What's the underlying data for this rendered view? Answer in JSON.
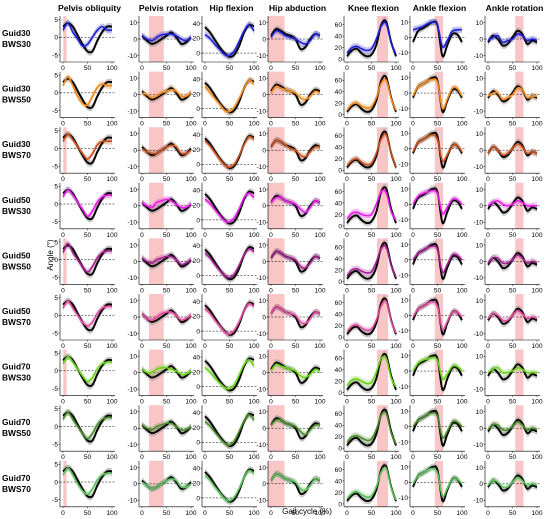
{
  "figure": {
    "ylabel": "Angle (°)",
    "xlabel": "Gait cycle (%)",
    "x_ticks": [
      "0",
      "50",
      "100"
    ]
  },
  "chart_data": {
    "type": "line",
    "title": "",
    "xlabel": "Gait cycle (%)",
    "ylabel": "Angle (°)",
    "x": [
      0,
      10,
      20,
      30,
      40,
      50,
      60,
      70,
      80,
      90,
      100
    ],
    "xlim": [
      0,
      100
    ],
    "column_titles": [
      "Pelvis obliquity",
      "Pelvis rotation",
      "Hip flexion",
      "Hip abduction",
      "Knee flexion",
      "Ankle flexion",
      "Ankle rotation"
    ],
    "row_labels": [
      [
        "Guid30",
        "BWS30"
      ],
      [
        "Guid30",
        "BWS50"
      ],
      [
        "Guid30",
        "BWS70"
      ],
      [
        "Guid50",
        "BWS30"
      ],
      [
        "Guid50",
        "BWS50"
      ],
      [
        "Guid50",
        "BWS70"
      ],
      [
        "Guid70",
        "BWS30"
      ],
      [
        "Guid70",
        "BWS50"
      ],
      [
        "Guid70",
        "BWS70"
      ]
    ],
    "row_colors": [
      "#1f1fd6",
      "#f08a1e",
      "#c8501e",
      "#e61ee6",
      "#a0208c",
      "#e04a9c",
      "#6bd01a",
      "#4a8a2a",
      "#5cc05c"
    ],
    "reference_color": "#000000",
    "panels": [
      {
        "yticks": [
          "5",
          "0",
          "-5"
        ],
        "ylim": [
          -7,
          6
        ],
        "zero_line": true,
        "reference": [
          3,
          4,
          3,
          0.5,
          -2,
          -4,
          -4,
          -1,
          1.5,
          3,
          3
        ]
      },
      {
        "yticks": [
          "10",
          "0",
          "-10"
        ],
        "ylim": [
          -14,
          14
        ],
        "zero_line": true,
        "reference": [
          2,
          -1,
          -3,
          -2,
          0,
          2,
          4,
          1,
          -3,
          -2,
          1
        ]
      },
      {
        "yticks": [
          "40",
          "20",
          "0"
        ],
        "ylim": [
          -12,
          50
        ],
        "zero_line": true,
        "reference": [
          35,
          28,
          18,
          8,
          0,
          -5,
          -2,
          10,
          28,
          38,
          36
        ]
      },
      {
        "yticks": [
          "10",
          "0",
          "-10"
        ],
        "ylim": [
          -14,
          14
        ],
        "zero_line": true,
        "reference": [
          2,
          6,
          5,
          3,
          2,
          0,
          -6,
          -5,
          0,
          3,
          2
        ]
      },
      {
        "yticks": [
          "60",
          "40",
          "20",
          "0"
        ],
        "ylim": [
          -5,
          75
        ],
        "zero_line": false,
        "reference": [
          5,
          15,
          18,
          10,
          5,
          8,
          25,
          60,
          65,
          30,
          5
        ]
      },
      {
        "yticks": [
          "10",
          "0",
          "-10"
        ],
        "ylim": [
          -16,
          14
        ],
        "zero_line": true,
        "reference": [
          -3,
          4,
          6,
          8,
          10,
          8,
          -12,
          -5,
          2,
          2,
          -3
        ]
      },
      {
        "yticks": [
          "10",
          "0",
          "-10"
        ],
        "ylim": [
          -14,
          14
        ],
        "zero_line": true,
        "reference": [
          -2,
          2,
          0,
          -4,
          -3,
          1,
          5,
          3,
          -3,
          -1,
          -2
        ]
      }
    ],
    "series_by_row": [
      [
        [
          2,
          4,
          1.5,
          -0.5,
          -2.5,
          -2,
          0,
          2,
          3,
          2,
          2
        ],
        [
          2,
          0,
          -1,
          1,
          2.5,
          3,
          3,
          2,
          0,
          -1,
          1
        ],
        [
          25,
          20,
          12,
          5,
          -2,
          -3,
          3,
          16,
          30,
          38,
          30
        ],
        [
          1,
          5,
          4,
          2,
          1,
          0,
          -2,
          -3,
          -1,
          3,
          2
        ],
        [
          10,
          20,
          22,
          18,
          15,
          18,
          35,
          58,
          62,
          28,
          8
        ],
        [
          5,
          6,
          7,
          9,
          10,
          8,
          -6,
          -2,
          4,
          5,
          5
        ],
        [
          -1,
          1,
          2,
          -2,
          -1,
          0,
          3,
          2,
          -1,
          0,
          -1
        ]
      ],
      [
        [
          2,
          4.5,
          2,
          -1,
          -3,
          -3.5,
          -1,
          1.5,
          2.5,
          2,
          2
        ],
        [
          1,
          0,
          -2,
          -1,
          1,
          2,
          3,
          2,
          -1,
          -1,
          1
        ],
        [
          30,
          22,
          14,
          6,
          -2,
          -4,
          2,
          14,
          28,
          38,
          34
        ],
        [
          1,
          5,
          4,
          3,
          2,
          1,
          -2,
          -3,
          -1,
          2,
          1
        ],
        [
          8,
          18,
          20,
          15,
          12,
          14,
          30,
          55,
          60,
          28,
          8
        ],
        [
          -2,
          4,
          6,
          8,
          9,
          7,
          -10,
          -4,
          3,
          3,
          -2
        ],
        [
          -1,
          1,
          1,
          -3,
          -2,
          0,
          4,
          3,
          -2,
          -1,
          -1
        ]
      ],
      [
        [
          2,
          4,
          2.5,
          0.5,
          -1.5,
          -3,
          -1.5,
          1,
          2,
          2,
          2
        ],
        [
          1,
          -1,
          -2,
          -2,
          0,
          2,
          3,
          2,
          -2,
          -2,
          0
        ],
        [
          32,
          25,
          16,
          7,
          -1,
          -4,
          0,
          12,
          27,
          37,
          34
        ],
        [
          2,
          6,
          5,
          3,
          1,
          0,
          -3,
          -4,
          -1,
          2,
          2
        ],
        [
          8,
          17,
          20,
          14,
          10,
          12,
          30,
          55,
          62,
          30,
          6
        ],
        [
          -2,
          4,
          6,
          8,
          9,
          6,
          -8,
          -4,
          2,
          2,
          -2
        ],
        [
          -2,
          2,
          0,
          -3,
          -2,
          1,
          4,
          2,
          -2,
          -1,
          -2
        ]
      ],
      [
        [
          2,
          4,
          2.5,
          0.5,
          -1.5,
          -3.5,
          -2,
          0.5,
          2,
          2.5,
          2.5
        ],
        [
          2,
          0,
          -1,
          2,
          3,
          4,
          3,
          1,
          -1,
          -1,
          1
        ],
        [
          28,
          22,
          14,
          6,
          -1,
          -3,
          3,
          15,
          30,
          36,
          30
        ],
        [
          2,
          5,
          5,
          3,
          2,
          1,
          -2,
          -4,
          -1,
          3,
          2
        ],
        [
          12,
          22,
          24,
          20,
          18,
          20,
          38,
          60,
          58,
          25,
          10
        ],
        [
          0,
          5,
          7,
          8,
          9,
          7,
          -6,
          -2,
          3,
          3,
          0
        ],
        [
          0,
          2,
          3,
          1,
          0,
          1,
          3,
          2,
          0,
          0,
          0
        ]
      ],
      [
        [
          2,
          4.5,
          2,
          0,
          -2,
          -3.5,
          -2,
          0.5,
          2,
          2.5,
          2.5
        ],
        [
          2,
          0,
          -1,
          1,
          2,
          3,
          3,
          1,
          -2,
          -1,
          1
        ],
        [
          30,
          24,
          15,
          7,
          0,
          -3,
          2,
          14,
          28,
          36,
          32
        ],
        [
          2,
          6,
          5,
          3,
          2,
          1,
          -3,
          -4,
          -1,
          3,
          2
        ],
        [
          10,
          20,
          22,
          18,
          15,
          17,
          34,
          58,
          60,
          28,
          8
        ],
        [
          0,
          4,
          6,
          8,
          9,
          7,
          -8,
          -3,
          3,
          3,
          0
        ],
        [
          -1,
          2,
          2,
          -1,
          -1,
          1,
          4,
          2,
          -1,
          0,
          -1
        ]
      ],
      [
        [
          2,
          4,
          2,
          0,
          -2,
          -3,
          -2,
          0.5,
          2,
          2.5,
          2.5
        ],
        [
          2,
          -1,
          -2,
          0,
          2,
          3,
          3,
          1,
          -2,
          -1,
          1
        ],
        [
          30,
          24,
          15,
          7,
          -1,
          -4,
          1,
          13,
          28,
          37,
          33
        ],
        [
          2,
          6,
          5,
          3,
          2,
          1,
          -3,
          -4,
          -1,
          3,
          2
        ],
        [
          9,
          19,
          21,
          16,
          12,
          14,
          30,
          55,
          62,
          28,
          7
        ],
        [
          -1,
          4,
          6,
          8,
          9,
          6,
          -9,
          -4,
          2,
          2,
          -1
        ],
        [
          -1,
          2,
          1,
          -2,
          -2,
          1,
          4,
          2,
          -1,
          0,
          -1
        ]
      ],
      [
        [
          2,
          4,
          2.5,
          0.5,
          -1.5,
          -3,
          -2,
          0.5,
          2,
          2.5,
          2.5
        ],
        [
          2,
          0,
          0,
          2,
          3,
          3,
          2,
          1,
          -1,
          -1,
          1
        ],
        [
          26,
          20,
          12,
          5,
          -1,
          -3,
          3,
          16,
          30,
          36,
          28
        ],
        [
          1,
          5,
          4,
          3,
          2,
          1,
          -2,
          -3,
          -1,
          2,
          1
        ],
        [
          12,
          22,
          24,
          20,
          16,
          18,
          36,
          60,
          60,
          26,
          10
        ],
        [
          0,
          5,
          7,
          8,
          9,
          7,
          -5,
          -2,
          3,
          3,
          0
        ],
        [
          0,
          2,
          3,
          0,
          0,
          1,
          3,
          2,
          0,
          0,
          0
        ]
      ],
      [
        [
          2,
          4,
          2,
          0,
          -2,
          -3.5,
          -2,
          0.5,
          2,
          2.5,
          2.5
        ],
        [
          2,
          0,
          -1,
          1,
          2,
          3,
          3,
          1,
          -1,
          -1,
          1
        ],
        [
          28,
          22,
          14,
          6,
          -1,
          -4,
          2,
          15,
          29,
          37,
          30
        ],
        [
          2,
          5,
          5,
          3,
          2,
          1,
          -2,
          -4,
          -1,
          2,
          2
        ],
        [
          10,
          20,
          22,
          18,
          14,
          16,
          33,
          58,
          61,
          27,
          8
        ],
        [
          0,
          4,
          6,
          8,
          9,
          7,
          -7,
          -3,
          3,
          3,
          0
        ],
        [
          -1,
          2,
          2,
          -1,
          -1,
          1,
          4,
          2,
          -1,
          0,
          -1
        ]
      ],
      [
        [
          2,
          4,
          2,
          -0.5,
          -2.5,
          -3.5,
          -2,
          0.5,
          2,
          2.5,
          2.5
        ],
        [
          1,
          -1,
          -3,
          -2,
          0,
          2,
          3,
          2,
          -2,
          -2,
          0
        ],
        [
          30,
          24,
          15,
          7,
          -1,
          -4,
          1,
          13,
          28,
          37,
          33
        ],
        [
          2,
          6,
          5,
          3,
          2,
          1,
          -3,
          -4,
          -1,
          3,
          2
        ],
        [
          9,
          18,
          21,
          16,
          12,
          14,
          30,
          56,
          62,
          28,
          7
        ],
        [
          -1,
          4,
          6,
          8,
          9,
          6,
          -9,
          -4,
          2,
          2,
          -1
        ],
        [
          -1,
          2,
          1,
          -2,
          -2,
          1,
          4,
          2,
          -1,
          0,
          -1
        ]
      ]
    ]
  }
}
